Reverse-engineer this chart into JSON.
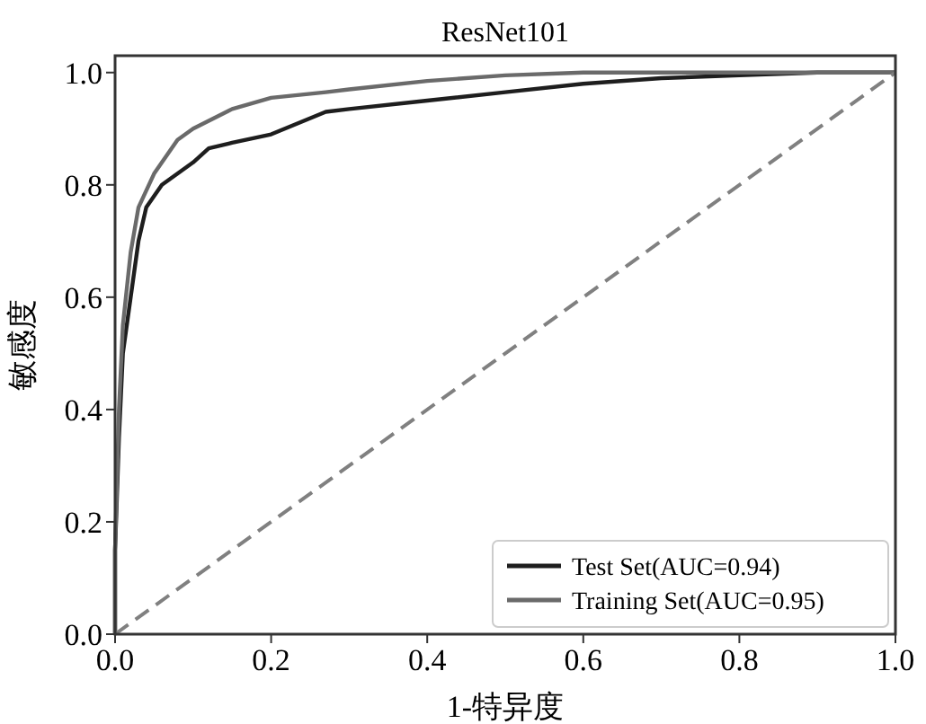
{
  "chart_data": {
    "type": "line",
    "title": "ResNet101",
    "xlabel": "1-特异度",
    "ylabel": "敏感度",
    "xlim": [
      0,
      1
    ],
    "ylim": [
      0,
      1.03
    ],
    "xticks": [
      {
        "value": 0,
        "label": "0.0"
      },
      0.2,
      0.4,
      0.6,
      0.8,
      {
        "value": 1,
        "label": "1.0"
      }
    ],
    "yticks": [
      {
        "value": 0,
        "label": "0.0"
      },
      0.2,
      0.4,
      0.6,
      0.8,
      {
        "value": 1,
        "label": "1.0"
      }
    ],
    "grid": false,
    "legend": "bottom right",
    "marker": "none",
    "line_style": "solid",
    "series": [
      {
        "name": "Test Set(AUC=0.94)",
        "color": "#1e1e1e",
        "x": [
          0,
          0,
          0.005,
          0.01,
          0.02,
          0.03,
          0.04,
          0.06,
          0.08,
          0.1,
          0.12,
          0.15,
          0.2,
          0.27,
          0.3,
          0.4,
          0.5,
          0.6,
          0.7,
          0.8,
          0.9,
          1
        ],
        "values": [
          0,
          0.15,
          0.35,
          0.5,
          0.6,
          0.7,
          0.76,
          0.8,
          0.82,
          0.84,
          0.865,
          0.875,
          0.89,
          0.93,
          0.935,
          0.95,
          0.965,
          0.98,
          0.99,
          0.995,
          1,
          1
        ]
      },
      {
        "name": "Training Set(AUC=0.95)",
        "color": "#6a6a6a",
        "x": [
          0,
          0,
          0.005,
          0.01,
          0.02,
          0.03,
          0.05,
          0.07,
          0.08,
          0.1,
          0.15,
          0.2,
          0.27,
          0.3,
          0.4,
          0.5,
          0.6,
          0.7,
          1
        ],
        "values": [
          0,
          0.15,
          0.4,
          0.55,
          0.68,
          0.76,
          0.82,
          0.86,
          0.88,
          0.9,
          0.935,
          0.955,
          0.965,
          0.97,
          0.985,
          0.995,
          1,
          1,
          1
        ]
      },
      {
        "color": "#808080",
        "line_style": "dashed",
        "x": [
          0,
          1
        ],
        "values": [
          0,
          1
        ]
      }
    ]
  }
}
